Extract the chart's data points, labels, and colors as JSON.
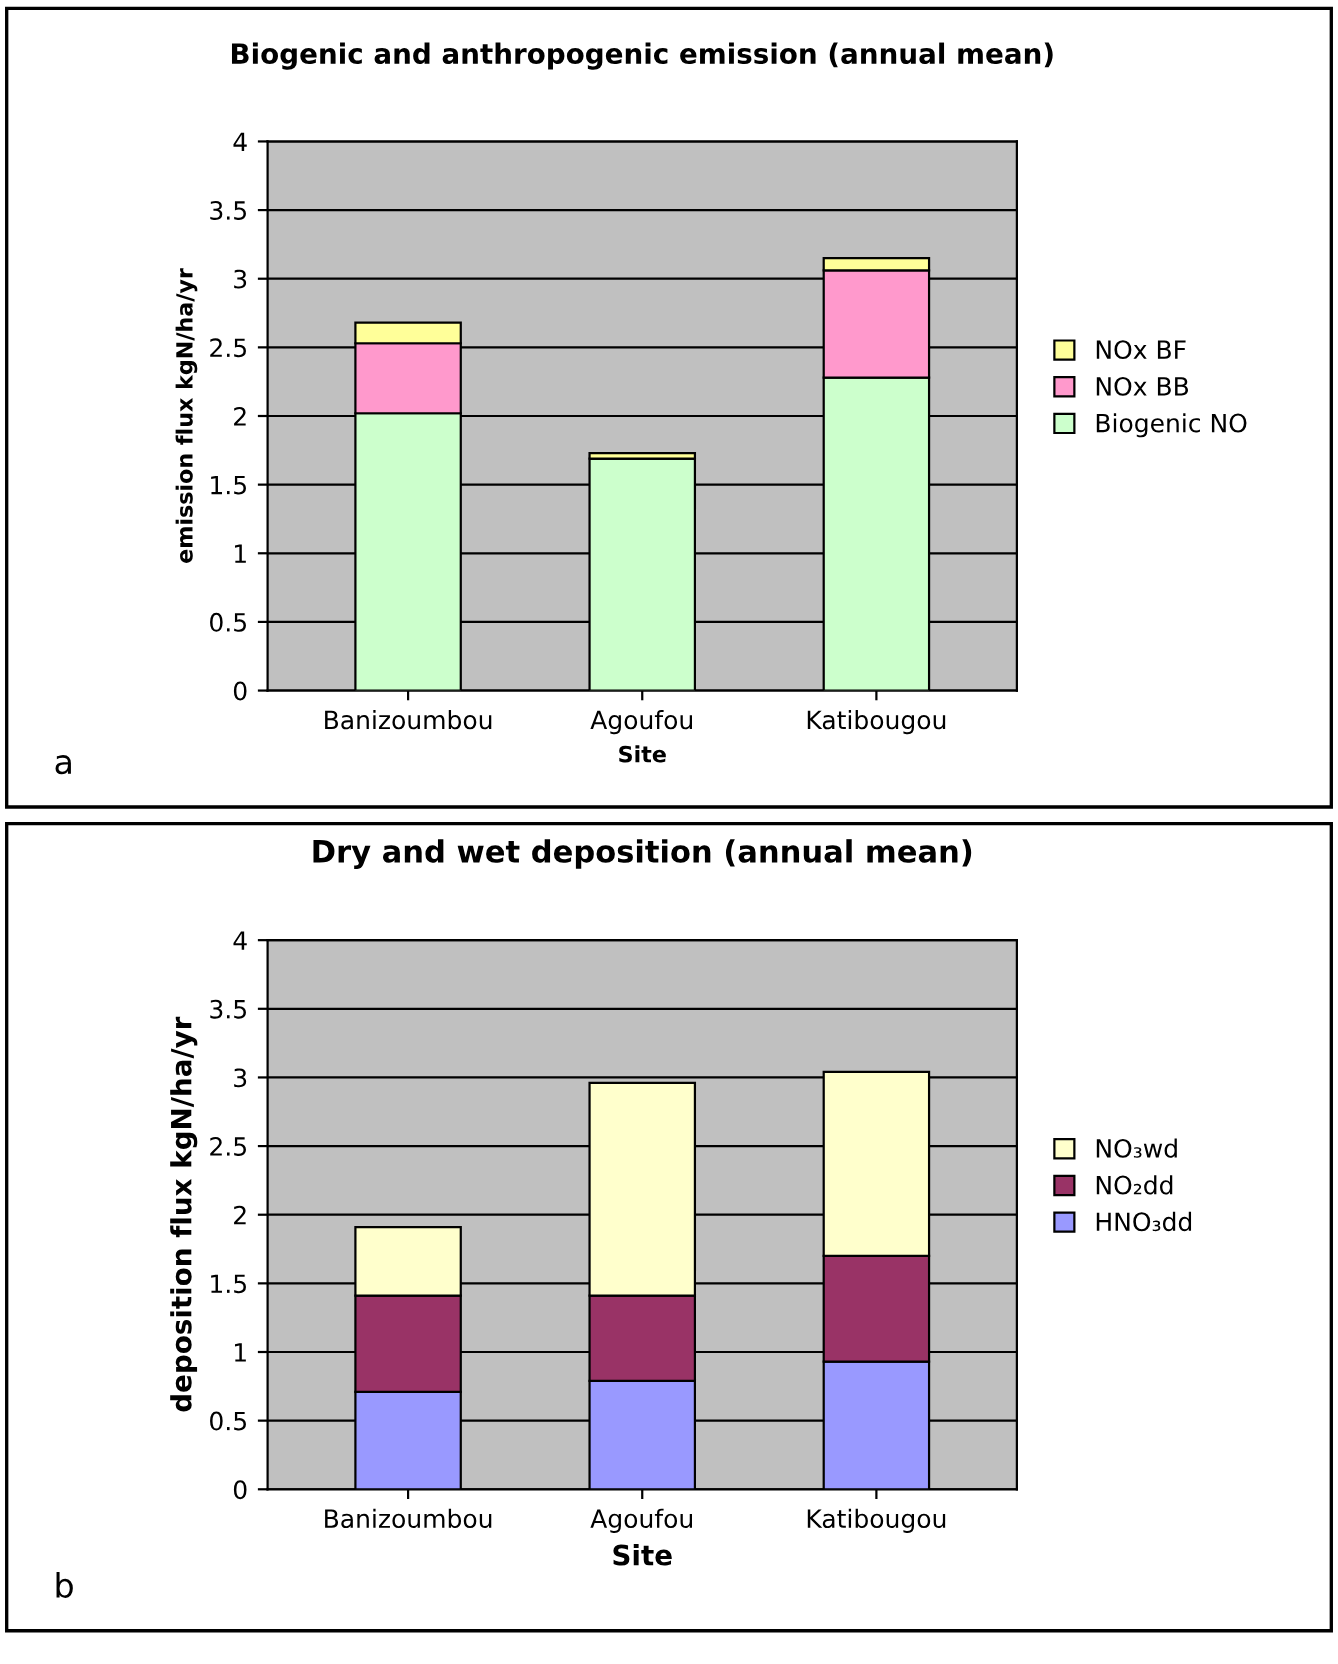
{
  "chart_data": [
    {
      "type": "bar",
      "title": "Biogenic and anthropogenic emission (annual mean)",
      "xlabel": "Site",
      "ylabel": "emission flux kgN/ha/yr",
      "categories": [
        "Banizoumbou",
        "Agoufou",
        "Katibougou"
      ],
      "stacked": true,
      "series": [
        {
          "name": "Biogenic NO",
          "color": "#ccffcc",
          "values": [
            2.02,
            1.69,
            2.28
          ]
        },
        {
          "name": "NOx BB",
          "color": "#ff99cc",
          "values": [
            0.51,
            0,
            0.78
          ]
        },
        {
          "name": "NOx BF",
          "color": "#ffff99",
          "values": [
            0.15,
            0.04,
            0.09
          ]
        }
      ],
      "ylim": [
        0,
        4
      ],
      "yticks": [
        0,
        0.5,
        1,
        1.5,
        2,
        2.5,
        3,
        3.5,
        4
      ],
      "grid": "y",
      "legend": "right",
      "annotations": [
        "a"
      ]
    },
    {
      "type": "bar",
      "title": "Dry and wet deposition (annual mean)",
      "xlabel": "Site",
      "ylabel": "deposition flux kgN/ha/yr",
      "categories": [
        "Banizoumbou",
        "Agoufou",
        "Katibougou"
      ],
      "stacked": true,
      "series": [
        {
          "name": "HNO₃dd",
          "color": "#9999ff",
          "values": [
            0.71,
            0.79,
            0.93
          ]
        },
        {
          "name": "NO₂dd",
          "color": "#993366",
          "values": [
            0.7,
            0.62,
            0.77
          ]
        },
        {
          "name": "NO₃wd",
          "color": "#ffffcc",
          "values": [
            0.5,
            1.55,
            1.34
          ]
        }
      ],
      "ylim": [
        0,
        4
      ],
      "yticks": [
        0,
        0.5,
        1,
        1.5,
        2,
        2.5,
        3,
        3.5,
        4
      ],
      "grid": "y",
      "legend": "right",
      "annotations": [
        "b"
      ]
    }
  ]
}
